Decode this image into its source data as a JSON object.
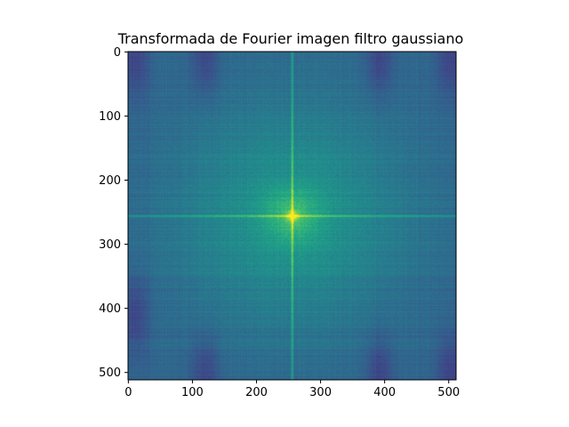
{
  "chart_data": {
    "type": "heatmap",
    "title": "Transformada de Fourier imagen filtro gaussiano",
    "xlabel": "",
    "ylabel": "",
    "image_shape": [
      512,
      512
    ],
    "xlim": [
      -0.5,
      511.5
    ],
    "ylim": [
      511.5,
      -0.5
    ],
    "xticks": [
      0,
      100,
      200,
      300,
      400,
      500
    ],
    "yticks": [
      0,
      100,
      200,
      300,
      400,
      500
    ],
    "colormap": "viridis",
    "center": [
      256,
      256
    ],
    "description_values": {
      "background_level": 0.32,
      "peak_level": 1.0,
      "axis_line_level": 0.62,
      "dark_spot_centers": [
        [
          10,
          10
        ],
        [
          120,
          10
        ],
        [
          392,
          10
        ],
        [
          502,
          10
        ],
        [
          10,
          410
        ],
        [
          120,
          500
        ],
        [
          392,
          500
        ],
        [
          502,
          500
        ]
      ]
    },
    "grid": false
  }
}
